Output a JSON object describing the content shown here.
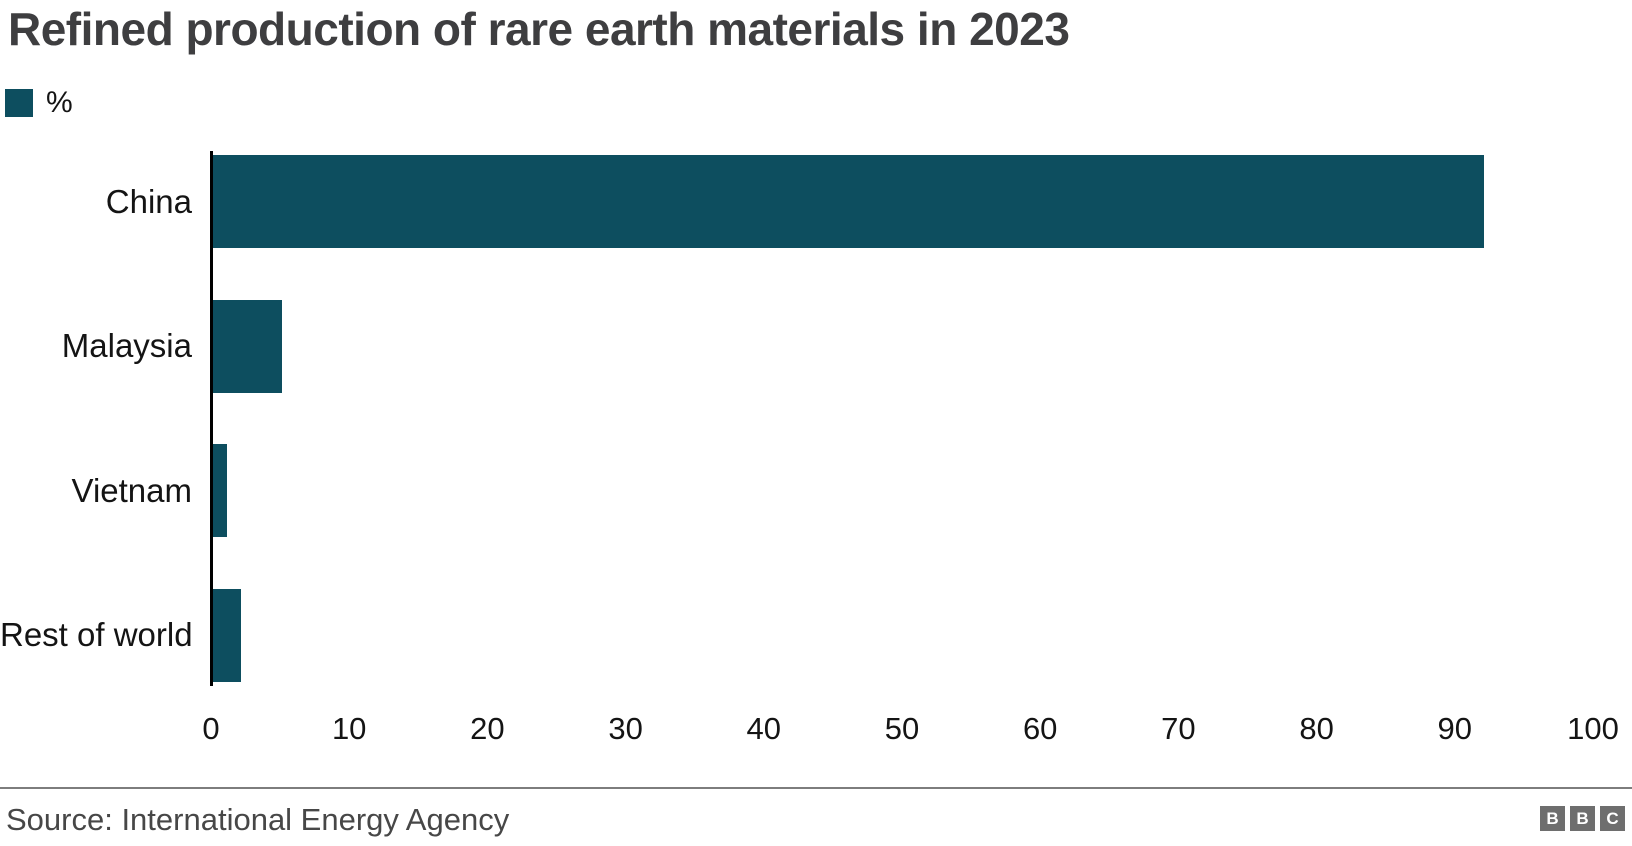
{
  "chart_data": {
    "type": "bar",
    "orientation": "horizontal",
    "title": "Refined production of rare earth materials in 2023",
    "legend": [
      {
        "label": "%",
        "color": "#0d4e5f"
      }
    ],
    "categories": [
      "China",
      "Malaysia",
      "Vietnam",
      "Rest of world"
    ],
    "values": [
      92,
      5,
      1,
      2
    ],
    "xlabel": "",
    "ylabel": "",
    "xlim": [
      0,
      100
    ],
    "xticks": [
      0,
      10,
      20,
      30,
      40,
      50,
      60,
      70,
      80,
      90,
      100
    ],
    "grid": false,
    "legend_position": "top-left",
    "unit": "%"
  },
  "legend": {
    "label": "%"
  },
  "footer": {
    "source": "Source: International Energy Agency",
    "logo_letters": [
      "B",
      "B",
      "C"
    ]
  },
  "colors": {
    "bar": "#0d4e5f",
    "title": "#3e3e40",
    "axis_line": "#000000",
    "tick_text": "#141414",
    "source_text": "#474747",
    "divider": "#7d7d7d",
    "logo_grey": "#6e6e6e",
    "background": "#ffffff"
  }
}
